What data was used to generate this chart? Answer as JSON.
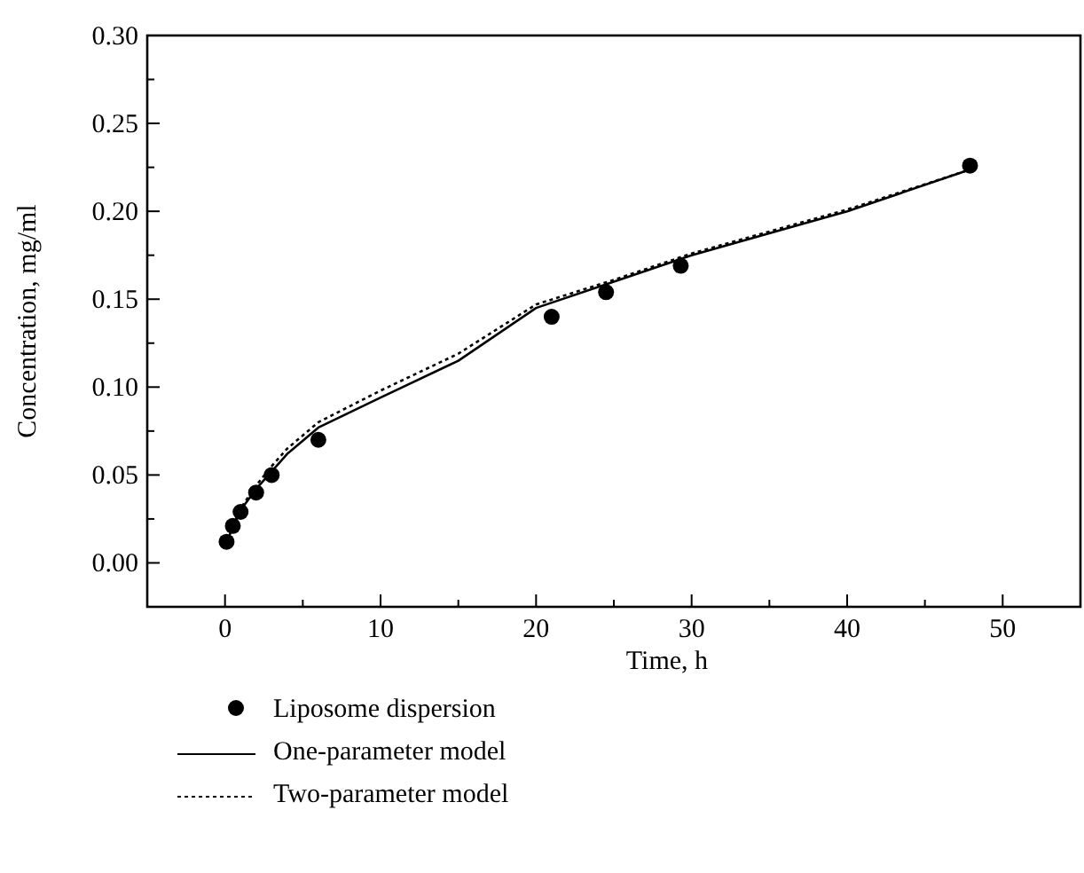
{
  "chart_data": {
    "type": "scatter",
    "xlabel": "Time, h",
    "ylabel": "Concentration, mg/ml",
    "xlim": [
      -5,
      55
    ],
    "ylim": [
      -0.025,
      0.3
    ],
    "xticks": [
      {
        "value": -5,
        "label": null
      },
      0,
      {
        "value": 5,
        "label": null
      },
      10,
      {
        "value": 15,
        "label": null
      },
      20,
      {
        "value": 25,
        "label": null
      },
      30,
      {
        "value": 35,
        "label": null
      },
      40,
      {
        "value": 45,
        "label": null
      },
      50
    ],
    "yticks": [
      {
        "value": -0.025,
        "label": null
      },
      {
        "value": 0,
        "label": "0.00"
      },
      {
        "value": 0.025,
        "label": null
      },
      {
        "value": 0.05,
        "label": "0.05"
      },
      {
        "value": 0.075,
        "label": null
      },
      {
        "value": 0.1,
        "label": "0.10"
      },
      {
        "value": 0.125,
        "label": null
      },
      {
        "value": 0.15,
        "label": "0.15"
      },
      {
        "value": 0.175,
        "label": null
      },
      {
        "value": 0.2,
        "label": "0.20"
      },
      {
        "value": 0.225,
        "label": null
      },
      {
        "value": 0.25,
        "label": "0.25"
      },
      {
        "value": 0.275,
        "label": null
      },
      {
        "value": 0.3,
        "label": "0.30"
      }
    ],
    "legend": "bottom",
    "grid": false,
    "series": [
      {
        "name": "Liposome dispersion",
        "marker": "circle",
        "color": "#000000",
        "x": [
          0.1,
          0.5,
          1,
          2,
          3,
          6,
          21,
          24.5,
          29.3,
          47.9
        ],
        "values": [
          0.012,
          0.021,
          0.029,
          0.04,
          0.05,
          0.07,
          0.14,
          0.154,
          0.169,
          0.226
        ]
      },
      {
        "name": "One-parameter model",
        "type": "line",
        "line_style": "solid",
        "marker": "none",
        "color": "#000000",
        "x": [
          0,
          1,
          2,
          3,
          4,
          6,
          10,
          15,
          20,
          25,
          30,
          40,
          48
        ],
        "values": [
          0.01,
          0.03,
          0.042,
          0.052,
          0.062,
          0.077,
          0.094,
          0.115,
          0.145,
          0.16,
          0.175,
          0.2,
          0.224
        ]
      },
      {
        "name": "Two-parameter model",
        "type": "line",
        "line_style": "dotted",
        "marker": "none",
        "color": "#000000",
        "x": [
          0,
          1,
          2,
          3,
          4,
          6,
          10,
          15,
          20,
          25,
          30,
          40,
          48
        ],
        "values": [
          0.01,
          0.031,
          0.044,
          0.055,
          0.065,
          0.08,
          0.098,
          0.119,
          0.147,
          0.161,
          0.176,
          0.201,
          0.224
        ]
      }
    ]
  }
}
